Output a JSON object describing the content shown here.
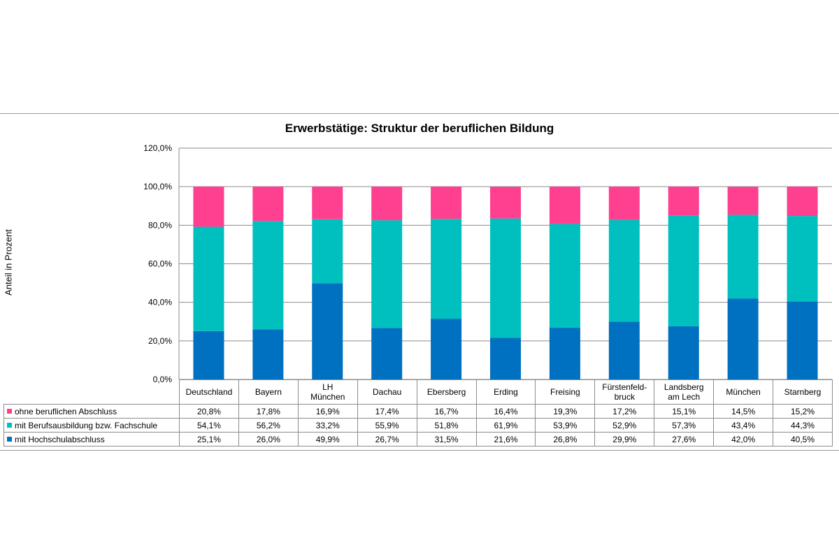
{
  "chart_data": {
    "type": "bar",
    "stacked": true,
    "title": "Erwerbstätige: Struktur der beruflichen Bildung",
    "ylabel": "Anteil in Prozent",
    "xlabel": "",
    "ylim": [
      0,
      120
    ],
    "yticks": [
      "0,0%",
      "20,0%",
      "40,0%",
      "60,0%",
      "80,0%",
      "100,0%",
      "120,0%"
    ],
    "grid": true,
    "legend": "table-left",
    "categories": [
      "Deutschland",
      "Bayern",
      "LH\nMünchen",
      "Dachau",
      "Ebersberg",
      "Erding",
      "Freising",
      "Fürstenfeld-\nbruck",
      "Landsberg\nam Lech",
      "München",
      "Starnberg"
    ],
    "series": [
      {
        "name": "ohne beruflichen Abschluss",
        "color": "#FF3F8F",
        "values": [
          20.8,
          17.8,
          16.9,
          17.4,
          16.7,
          16.4,
          19.3,
          17.2,
          15.1,
          14.5,
          15.2
        ],
        "labels": [
          "20,8%",
          "17,8%",
          "16,9%",
          "17,4%",
          "16,7%",
          "16,4%",
          "19,3%",
          "17,2%",
          "15,1%",
          "14,5%",
          "15,2%"
        ]
      },
      {
        "name": "mit Berufsausbildung bzw. Fachschule",
        "color": "#00BFBF",
        "values": [
          54.1,
          56.2,
          33.2,
          55.9,
          51.8,
          61.9,
          53.9,
          52.9,
          57.3,
          43.4,
          44.3
        ],
        "labels": [
          "54,1%",
          "56,2%",
          "33,2%",
          "55,9%",
          "51,8%",
          "61,9%",
          "53,9%",
          "52,9%",
          "57,3%",
          "43,4%",
          "44,3%"
        ]
      },
      {
        "name": "mit Hochschulabschluss",
        "color": "#0070C0",
        "values": [
          25.1,
          26.0,
          49.9,
          26.7,
          31.5,
          21.6,
          26.8,
          29.9,
          27.6,
          42.0,
          40.5
        ],
        "labels": [
          "25,1%",
          "26,0%",
          "49,9%",
          "26,7%",
          "31,5%",
          "21,6%",
          "26,8%",
          "29,9%",
          "27,6%",
          "42,0%",
          "40,5%"
        ]
      }
    ]
  }
}
